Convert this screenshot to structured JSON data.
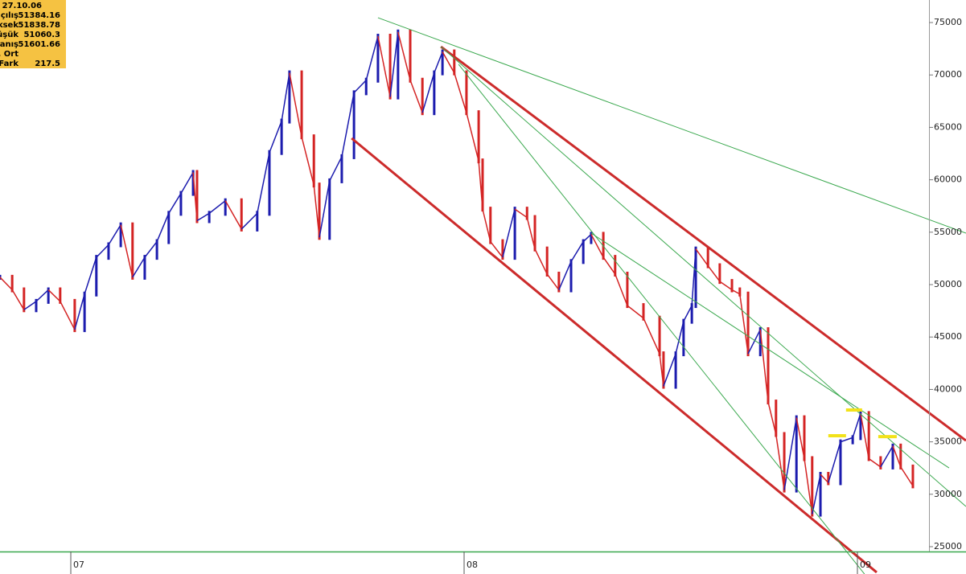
{
  "chart_data": {
    "type": "price-bars",
    "x": [
      2006.82,
      2006.851,
      2006.881,
      2006.912,
      2006.943,
      2006.973,
      2007.01,
      2007.035,
      2007.065,
      2007.096,
      2007.127,
      2007.157,
      2007.188,
      2007.219,
      2007.249,
      2007.28,
      2007.311,
      2007.321,
      2007.352,
      2007.393,
      2007.434,
      2007.474,
      2007.505,
      2007.536,
      2007.556,
      2007.587,
      2007.618,
      2007.632,
      2007.658,
      2007.689,
      2007.72,
      2007.751,
      2007.781,
      2007.812,
      2007.832,
      2007.863,
      2007.894,
      2007.924,
      2007.945,
      2007.975,
      2008.006,
      2008.037,
      2008.047,
      2008.067,
      2008.098,
      2008.129,
      2008.16,
      2008.18,
      2008.211,
      2008.241,
      2008.272,
      2008.303,
      2008.323,
      2008.354,
      2008.384,
      2008.415,
      2008.456,
      2008.497,
      2008.507,
      2008.538,
      2008.558,
      2008.579,
      2008.589,
      2008.62,
      2008.65,
      2008.681,
      2008.701,
      2008.722,
      2008.753,
      2008.773,
      2008.793,
      2008.814,
      2008.845,
      2008.865,
      2008.885,
      2008.906,
      2008.926,
      2008.957,
      2008.988,
      2009.008,
      2009.029,
      2009.059,
      2009.09,
      2009.11,
      2009.141
    ],
    "values": [
      50700,
      49500,
      47600,
      48400,
      49500,
      48400,
      45700,
      49100,
      52600,
      53800,
      55700,
      50700,
      52600,
      54100,
      56800,
      58700,
      60700,
      56100,
      56800,
      58000,
      55300,
      56800,
      62600,
      65600,
      70200,
      64100,
      59500,
      54500,
      59900,
      62200,
      68300,
      69500,
      73700,
      67900,
      74100,
      69500,
      66400,
      70200,
      72200,
      70200,
      66400,
      61800,
      57200,
      54100,
      52600,
      57200,
      56400,
      53400,
      51000,
      49500,
      52200,
      54100,
      54800,
      52600,
      51000,
      48000,
      46800,
      43400,
      40300,
      43400,
      46500,
      48000,
      53400,
      51800,
      50300,
      49500,
      49100,
      43400,
      45700,
      38800,
      35700,
      30400,
      37300,
      33400,
      28100,
      31900,
      31100,
      35000,
      35400,
      37700,
      33400,
      32600,
      34600,
      32600,
      30800
    ],
    "up_color": "#1c1cae",
    "down_color": "#d42424",
    "xlim": [
      2006.82,
      2009.182
    ],
    "xticks": [
      {
        "value": 2007,
        "label": "07"
      },
      {
        "value": 2008,
        "label": "08"
      },
      {
        "value": 2009,
        "label": "09"
      }
    ],
    "ylim": [
      24540,
      77150
    ],
    "yticks": [
      25000,
      30000,
      35000,
      40000,
      45000,
      50000,
      55000,
      60000,
      65000,
      70000,
      75000
    ],
    "trendlines": [
      {
        "x": [
          2007.714,
          2009.049
        ],
        "y": [
          63960,
          22550
        ],
        "color": "#cc2b2b",
        "width": 3
      },
      {
        "x": [
          2007.941,
          2009.276
        ],
        "y": [
          72700,
          35120
        ],
        "color": "#cc2b2b",
        "width": 3
      },
      {
        "x": [
          2007.781,
          2009.276
        ],
        "y": [
          75460,
          54910
        ],
        "color": "#3aa84e",
        "width": 1
      },
      {
        "x": [
          2007.941,
          2009.276
        ],
        "y": [
          72700,
          28830
        ],
        "color": "#3aa84e",
        "width": 1
      },
      {
        "x": [
          2007.986,
          2009.018
        ],
        "y": [
          71010,
          22390
        ],
        "color": "#3aa84e",
        "width": 1
      },
      {
        "x": [
          2008.323,
          2009.233
        ],
        "y": [
          54910,
          32510
        ],
        "color": "#3aa84e",
        "width": 1
      }
    ],
    "markers": [
      {
        "x": [
          2008.926,
          2008.971
        ],
        "y": [
          35580,
          35580
        ],
        "color": "#f2e21a"
      },
      {
        "x": [
          2008.971,
          2009.012
        ],
        "y": [
          38040,
          38040
        ],
        "color": "#f2e21a"
      },
      {
        "x": [
          2009.053,
          2009.1
        ],
        "y": [
          35500,
          35500
        ],
        "color": "#f2e21a"
      }
    ],
    "info_box": {
      "date": "27.10.06",
      "rows": [
        {
          "label": "çılış",
          "value": 51384.16
        },
        {
          "label": "ksek",
          "value": 51838.78
        },
        {
          "label": "üşük",
          "value": 51060.3
        },
        {
          "label": "anış",
          "value": 51601.66
        },
        {
          "label": ". Ort"
        },
        {
          "label": "Fark",
          "value": 217.5
        }
      ]
    }
  }
}
